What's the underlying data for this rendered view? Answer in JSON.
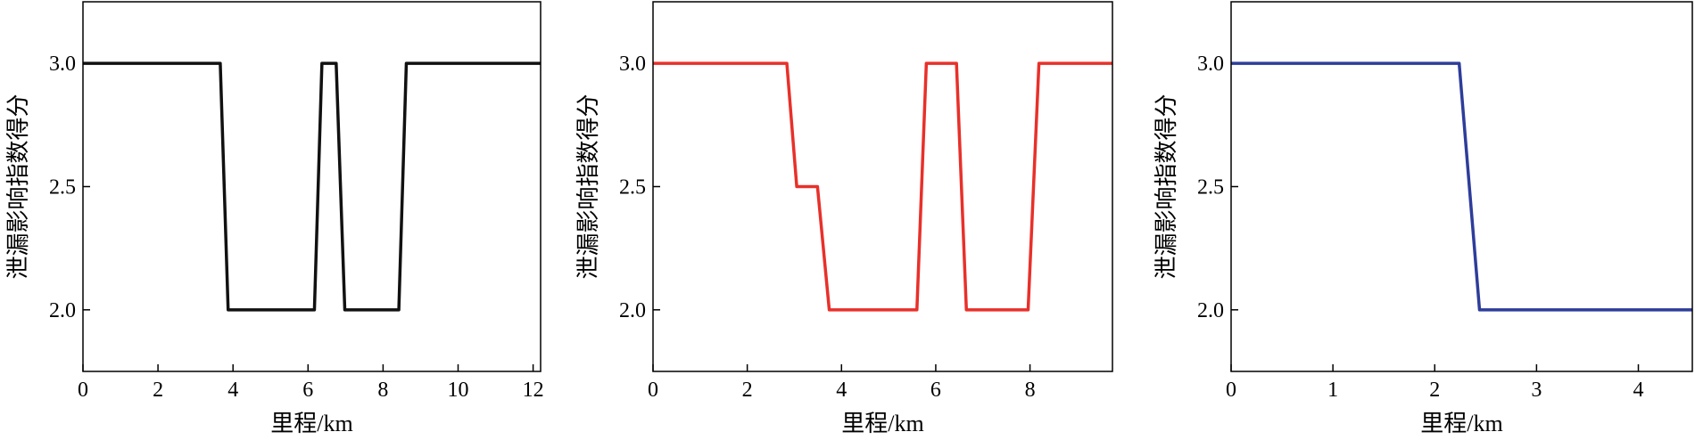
{
  "chart_data": [
    {
      "type": "line",
      "xlabel": "里程/km",
      "ylabel": "泄漏影响指数得分",
      "xlim": [
        0,
        12.2
      ],
      "ylim": [
        1.75,
        3.25
      ],
      "xticks": [
        0,
        2,
        4,
        6,
        8,
        10,
        12
      ],
      "yticks": [
        {
          "value": 2,
          "label": "2.0"
        },
        {
          "value": 2.5,
          "label": "2.5"
        },
        {
          "value": 3,
          "label": "3.0"
        }
      ],
      "series": [
        {
          "color": "#111111",
          "x": [
            0,
            3.66,
            3.87,
            6.17,
            6.37,
            6.75,
            6.98,
            8.42,
            8.62,
            12.2
          ],
          "values": [
            3,
            3,
            2,
            2,
            3,
            3,
            2,
            2,
            3,
            3
          ]
        }
      ]
    },
    {
      "type": "line",
      "xlabel": "里程/km",
      "ylabel": "泄漏影响指数得分",
      "xlim": [
        0,
        9.75
      ],
      "ylim": [
        1.75,
        3.25
      ],
      "xticks": [
        0,
        2,
        4,
        6,
        8
      ],
      "yticks": [
        {
          "value": 2,
          "label": "2.0"
        },
        {
          "value": 2.5,
          "label": "2.5"
        },
        {
          "value": 3,
          "label": "3.0"
        }
      ],
      "series": [
        {
          "color": "#e8302a",
          "x": [
            0,
            2.84,
            3.05,
            3.49,
            3.74,
            5.6,
            5.8,
            6.44,
            6.65,
            7.96,
            8.19,
            9.75
          ],
          "values": [
            3,
            3,
            2.5,
            2.5,
            2,
            2,
            3,
            3,
            2,
            2,
            3,
            3
          ]
        }
      ]
    },
    {
      "type": "line",
      "xlabel": "里程/km",
      "ylabel": "泄漏影响指数得分",
      "xlim": [
        0,
        4.53
      ],
      "ylim": [
        1.75,
        3.25
      ],
      "xticks": [
        0,
        1,
        2,
        3,
        4
      ],
      "yticks": [
        {
          "value": 2,
          "label": "2.0"
        },
        {
          "value": 2.5,
          "label": "2.5"
        },
        {
          "value": 3,
          "label": "3.0"
        }
      ],
      "series": [
        {
          "color": "#2e3d9a",
          "x": [
            0,
            2.24,
            2.44,
            4.53
          ],
          "values": [
            3,
            3,
            2,
            2
          ]
        }
      ]
    }
  ]
}
